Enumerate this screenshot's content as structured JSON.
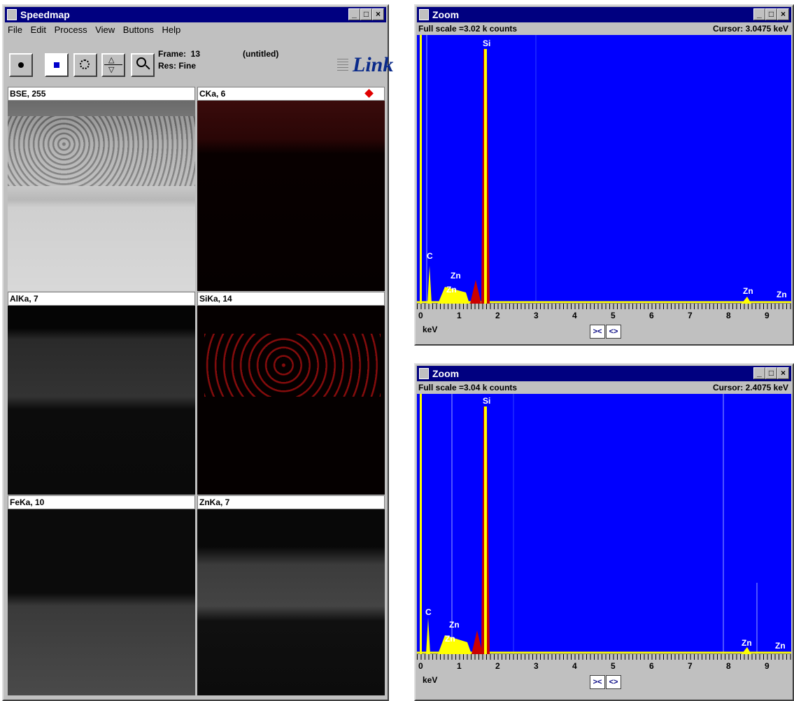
{
  "speedmap": {
    "title": "Speedmap",
    "menu": [
      "File",
      "Edit",
      "Process",
      "View",
      "Buttons",
      "Help"
    ],
    "frame_label": "Frame:  13",
    "res_label": "Res: Fine",
    "doc_name": "(untitled)",
    "logo": "Link",
    "panes": [
      {
        "label": "BSE, 255"
      },
      {
        "label": "CKa, 6"
      },
      {
        "label": "AlKa, 7"
      },
      {
        "label": "SiKa, 14"
      },
      {
        "label": "FeKa, 10"
      },
      {
        "label": "ZnKa, 7"
      }
    ]
  },
  "zoom1": {
    "title": "Zoom",
    "full_scale": "Full scale =3.02 k counts",
    "cursor": "Cursor: 3.0475 keV",
    "unit": "keV"
  },
  "zoom2": {
    "title": "Zoom",
    "full_scale": "Full scale =3.04 k counts",
    "cursor": "Cursor: 2.4075 keV",
    "unit": "keV"
  },
  "ticks": [
    "0",
    "1",
    "2",
    "3",
    "4",
    "5",
    "6",
    "7",
    "8",
    "9"
  ],
  "peak_labels": {
    "si": "Si",
    "c": "C",
    "zn": "Zn"
  },
  "colors": {
    "title": "#000080",
    "spectrum_bg": "#0000ff",
    "yellow": "#ffff00",
    "red": "#cc0000"
  }
}
